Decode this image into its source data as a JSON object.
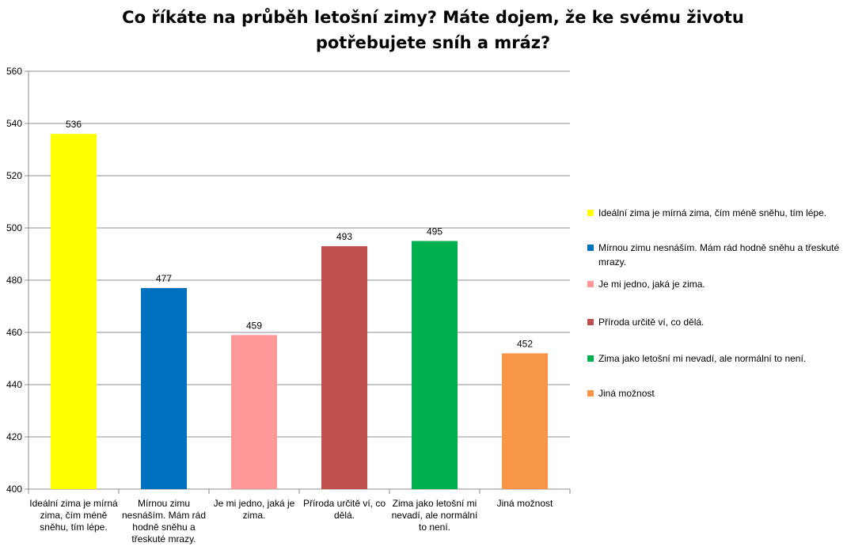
{
  "chart_data": {
    "type": "bar",
    "title": [
      "Co říkáte na průběh letošní zimy? Máte dojem, že ke svému životu",
      "potřebujete sníh a mráz?"
    ],
    "categories": [
      "Ideální zima je mírná zima, čím méně sněhu, tím lépe.",
      "Mírnou zimu nesnáším. Mám rád hodně sněhu a třeskuté mrazy.",
      "Je mi jedno, jaká je zima.",
      "Příroda určitě ví, co dělá.",
      "Zima jako letošní mi nevadí, ale normální to není.",
      "Jiná možnost"
    ],
    "values": [
      536,
      477,
      459,
      493,
      495,
      452
    ],
    "colors": [
      "#ffff00",
      "#0070c0",
      "#ff9999",
      "#c0504d",
      "#00b050",
      "#f79646"
    ],
    "ylim": [
      400,
      560
    ],
    "yticks": [
      400,
      420,
      440,
      460,
      480,
      500,
      520,
      540,
      560
    ],
    "grid": true,
    "legend_position": "right",
    "legend": [
      "Ideální zima je mírná zima, čím méně sněhu, tím lépe.",
      "Mírnou zimu nesnáším. Mám rád hodně sněhu a třeskuté mrazy.",
      "Je mi jedno, jaká je zima.",
      "Příroda určitě ví, co dělá.",
      "Zima jako letošní mi nevadí, ale normální to není.",
      "Jiná možnost"
    ]
  }
}
